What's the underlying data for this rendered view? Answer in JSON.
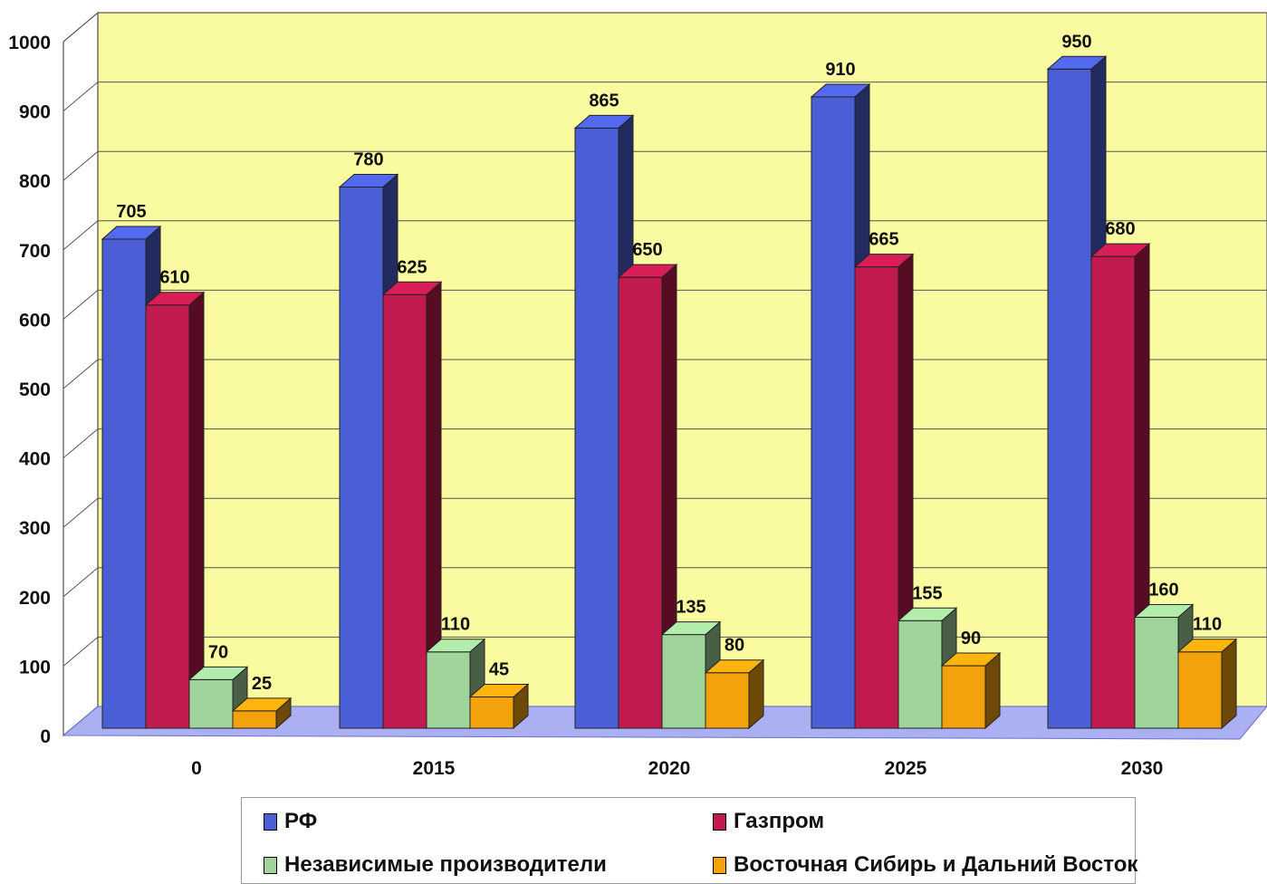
{
  "chart_data": {
    "type": "bar",
    "categories": [
      "0",
      "2015",
      "2020",
      "2025",
      "2030"
    ],
    "series": [
      {
        "name": "РФ",
        "values": [
          705,
          780,
          865,
          910,
          950
        ],
        "color": "#4a5fd6"
      },
      {
        "name": "Газпром",
        "values": [
          610,
          625,
          650,
          665,
          680
        ],
        "color": "#c11a4e"
      },
      {
        "name": "Независимые производители",
        "values": [
          70,
          110,
          135,
          155,
          160
        ],
        "color": "#9fd49a"
      },
      {
        "name": "Восточная Сибирь и Дальний Восток",
        "values": [
          25,
          45,
          80,
          90,
          110
        ],
        "color": "#f4a20c"
      }
    ],
    "ylim": [
      0,
      1000
    ],
    "yticks": [
      0,
      100,
      200,
      300,
      400,
      500,
      600,
      700,
      800,
      900,
      1000
    ],
    "grid": true,
    "legend_position": "bottom",
    "wall_color": "#fafaa0",
    "floor_color": "#aab0f2"
  }
}
